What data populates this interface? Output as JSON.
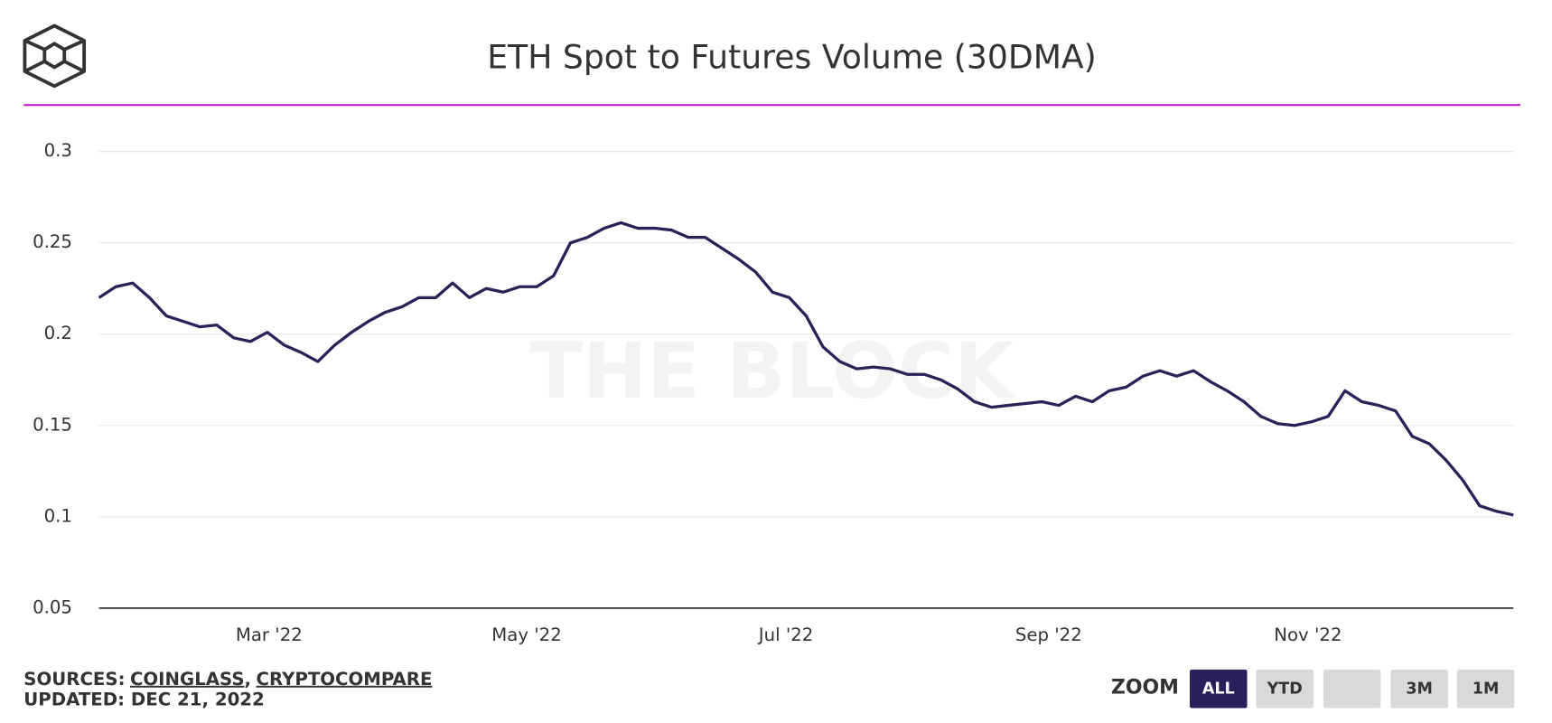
{
  "chart_data": {
    "type": "line",
    "title": "ETH Spot to Futures Volume (30DMA)",
    "watermark": "THE BLOCK",
    "series": [
      {
        "name": "ETH Spot to Futures Volume",
        "color": "#2a2158",
        "values": [
          0.22,
          0.226,
          0.228,
          0.22,
          0.21,
          0.207,
          0.204,
          0.205,
          0.198,
          0.196,
          0.201,
          0.194,
          0.19,
          0.185,
          0.194,
          0.201,
          0.207,
          0.212,
          0.215,
          0.22,
          0.22,
          0.228,
          0.22,
          0.225,
          0.223,
          0.226,
          0.226,
          0.232,
          0.25,
          0.253,
          0.258,
          0.261,
          0.258,
          0.258,
          0.257,
          0.253,
          0.253,
          0.247,
          0.241,
          0.234,
          0.223,
          0.22,
          0.21,
          0.193,
          0.185,
          0.181,
          0.182,
          0.181,
          0.178,
          0.178,
          0.175,
          0.17,
          0.163,
          0.16,
          0.161,
          0.162,
          0.163,
          0.161,
          0.166,
          0.163,
          0.169,
          0.171,
          0.177,
          0.18,
          0.177,
          0.18,
          0.174,
          0.169,
          0.163,
          0.155,
          0.151,
          0.15,
          0.152,
          0.155,
          0.169,
          0.163,
          0.161,
          0.158,
          0.144,
          0.14,
          0.131,
          0.12,
          0.106,
          0.103,
          0.101
        ]
      }
    ],
    "xlim": [
      0,
      84
    ],
    "xticks": [
      {
        "value": 10.1,
        "label": "Mar '22"
      },
      {
        "value": 25.4,
        "label": "May '22"
      },
      {
        "value": 40.8,
        "label": "Jul '22"
      },
      {
        "value": 56.4,
        "label": "Sep '22"
      },
      {
        "value": 71.8,
        "label": "Nov '22"
      }
    ],
    "ylim": [
      0.05,
      0.3
    ],
    "yticks": [
      0.05,
      0.1,
      0.15,
      0.2,
      0.25,
      0.3
    ],
    "grid": true
  },
  "footer": {
    "sources_label": "SOURCES:",
    "sources": [
      "COINGLASS",
      "CRYPTOCOMPARE"
    ],
    "separator": ",",
    "updated": "UPDATED: DEC 21, 2022"
  },
  "zoom": {
    "label": "ZOOM",
    "buttons": [
      "ALL",
      "YTD",
      "",
      "3M",
      "1M"
    ]
  }
}
